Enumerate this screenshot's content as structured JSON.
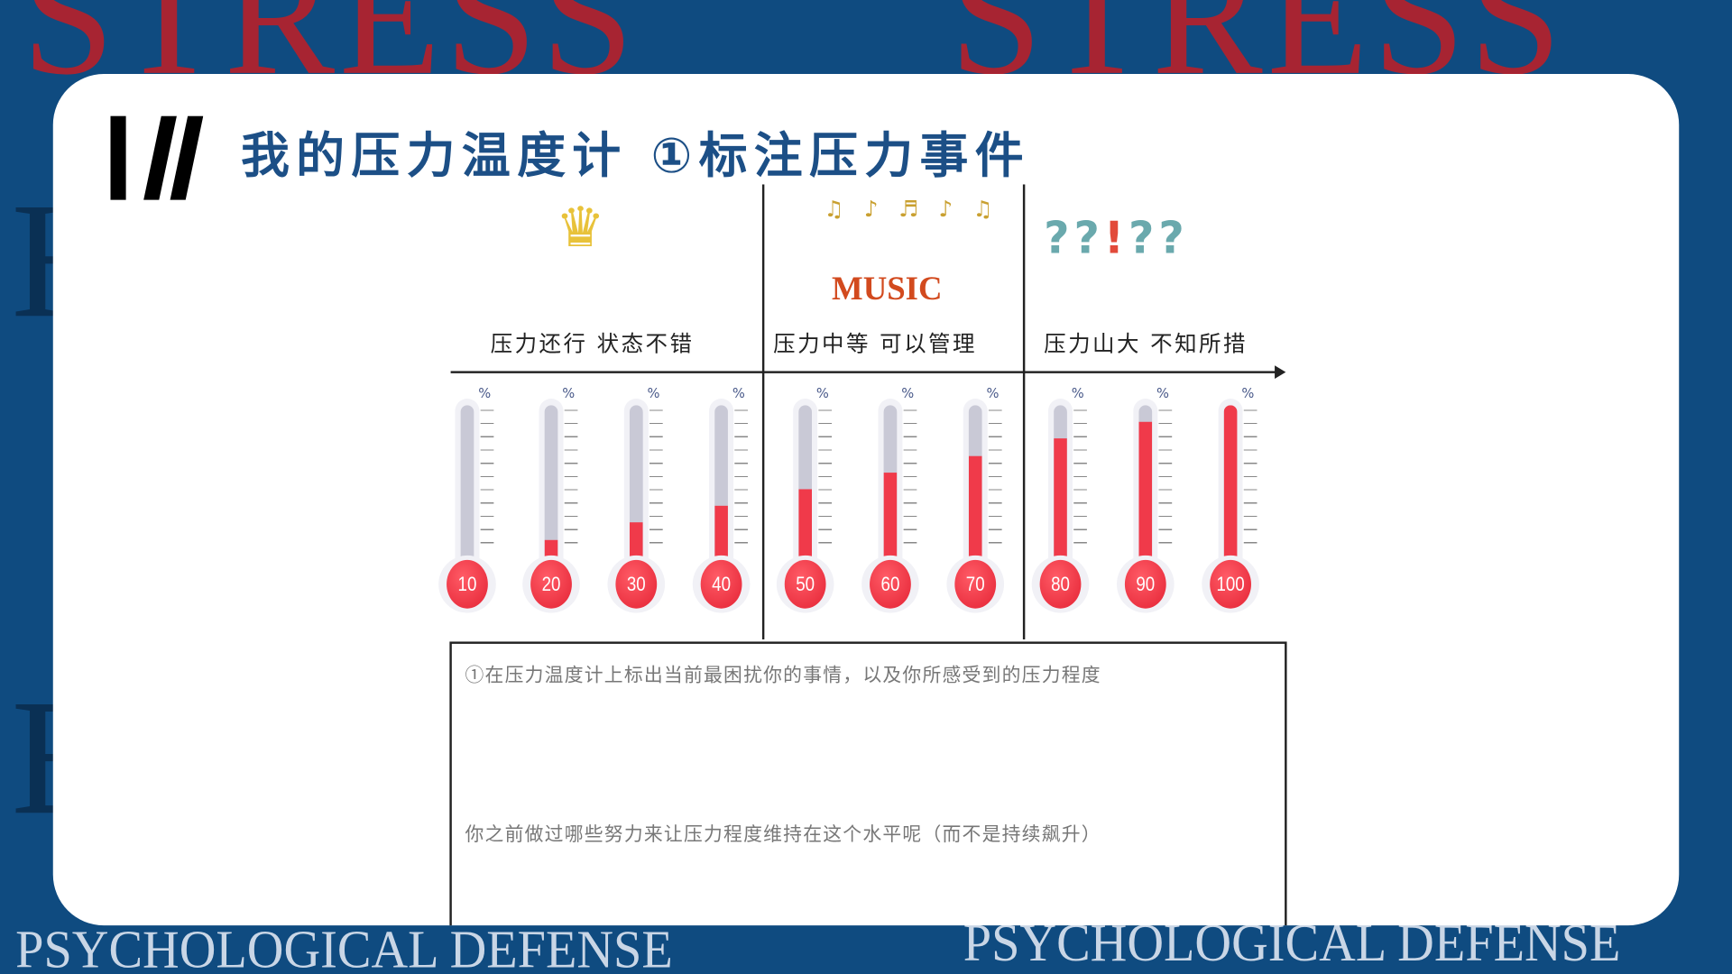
{
  "background": {
    "top_word": "STRESS",
    "bottom_text": "PSYCHOLOGICAL DEFENSE"
  },
  "title": "我的压力温度计 ①标注压力事件",
  "categories": [
    {
      "label": "压力还行  状态不错",
      "icon": "crown-icon"
    },
    {
      "label": "压力中等  可以管理",
      "icon": "music-icon",
      "art_text": "MUSIC"
    },
    {
      "label": "压力山大  不知所措",
      "icon": "question-marks-icon"
    }
  ],
  "thermometers": [
    {
      "value": "10",
      "level": 10
    },
    {
      "value": "20",
      "level": 20
    },
    {
      "value": "30",
      "level": 30
    },
    {
      "value": "40",
      "level": 40
    },
    {
      "value": "50",
      "level": 50
    },
    {
      "value": "60",
      "level": 60
    },
    {
      "value": "70",
      "level": 70
    },
    {
      "value": "80",
      "level": 80
    },
    {
      "value": "90",
      "level": 90
    },
    {
      "value": "100",
      "level": 100
    }
  ],
  "percent_symbol": "%",
  "prompts": {
    "q1": "①在压力温度计上标出当前最困扰你的事情，以及你所感受到的压力程度",
    "q2": "你之前做过哪些努力来让压力程度维持在这个水平呢（而不是持续飙升）"
  },
  "colors": {
    "accent": "#1c4f86",
    "fill": "#f03a4a",
    "background": "#0f4b80"
  }
}
